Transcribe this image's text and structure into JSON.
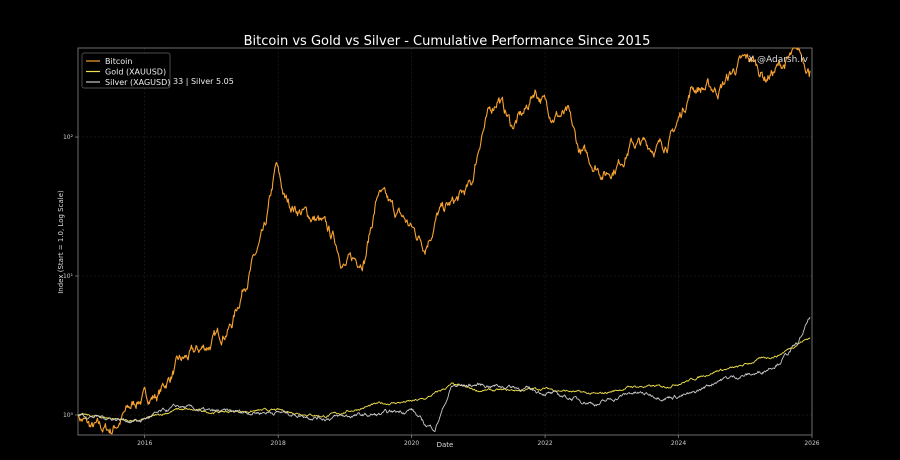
{
  "chart_data": {
    "type": "line",
    "title": "Bitcoin vs Gold vs Silver - Cumulative Performance Since 2015",
    "xlabel": "Date",
    "ylabel": "Index (Start = 1.0, Log Scale)",
    "xlim": [
      2015.0,
      2026.0
    ],
    "ylim": [
      0.72,
      600
    ],
    "yscale": "log",
    "grid": true,
    "legend_placement": "top-left",
    "x_ticks": [
      "2016",
      "2018",
      "2020",
      "2022",
      "2024",
      "2026"
    ],
    "y_ticks": [
      {
        "value": 1,
        "label": "10⁰"
      },
      {
        "value": 10,
        "label": "10¹"
      },
      {
        "value": 100,
        "label": "10²"
      }
    ],
    "annotation": "X @Adarsh.lv",
    "legend_overlap_text": "33  |  Silver 5.05",
    "series": [
      {
        "name": "Bitcoin",
        "color": "#f7a231",
        "x": [
          2015.0,
          2015.2,
          2015.5,
          2015.9,
          2016.2,
          2016.5,
          2017.0,
          2017.3,
          2017.5,
          2017.8,
          2017.97,
          2018.1,
          2018.3,
          2018.6,
          2018.85,
          2019.0,
          2019.3,
          2019.5,
          2019.7,
          2019.9,
          2020.2,
          2020.4,
          2020.7,
          2020.9,
          2021.05,
          2021.3,
          2021.5,
          2021.7,
          2021.85,
          2022.1,
          2022.35,
          2022.5,
          2022.9,
          2023.1,
          2023.3,
          2023.7,
          2023.9,
          2024.2,
          2024.6,
          2024.9,
          2025.1,
          2025.3,
          2025.6,
          2025.8,
          2025.9,
          2025.97
        ],
        "y": [
          1.0,
          0.8,
          0.78,
          1.3,
          1.4,
          2.3,
          3.3,
          4.5,
          9,
          20,
          60,
          35,
          30,
          25,
          18,
          12,
          14,
          40,
          30,
          25,
          17,
          28,
          35,
          45,
          110,
          200,
          120,
          150,
          220,
          150,
          140,
          80,
          55,
          65,
          90,
          85,
          100,
          230,
          220,
          330,
          360,
          270,
          340,
          400,
          350,
          300
        ]
      },
      {
        "name": "Gold (XAUUSD)",
        "color": "#f2e14c",
        "x": [
          2015.0,
          2015.5,
          2015.9,
          2016.5,
          2017.0,
          2018.0,
          2018.7,
          2019.0,
          2019.5,
          2020.0,
          2020.2,
          2020.6,
          2021.0,
          2021.5,
          2022.0,
          2022.8,
          2023.3,
          2023.8,
          2024.2,
          2024.6,
          2024.9,
          2025.2,
          2025.5,
          2025.8,
          2025.97
        ],
        "y": [
          1.0,
          0.95,
          0.9,
          1.1,
          1.05,
          1.08,
          0.98,
          1.05,
          1.2,
          1.25,
          1.3,
          1.65,
          1.5,
          1.5,
          1.55,
          1.4,
          1.6,
          1.6,
          1.8,
          2.1,
          2.2,
          2.5,
          2.7,
          3.3,
          3.6
        ]
      },
      {
        "name": "Silver (XAGUSD)",
        "color": "#c8c8c8",
        "x": [
          2015.0,
          2015.5,
          2015.9,
          2016.5,
          2017.0,
          2018.0,
          2018.7,
          2019.0,
          2019.5,
          2020.0,
          2020.2,
          2020.35,
          2020.6,
          2021.0,
          2021.5,
          2022.0,
          2022.8,
          2023.3,
          2023.8,
          2024.2,
          2024.6,
          2024.9,
          2025.2,
          2025.5,
          2025.8,
          2025.97
        ],
        "y": [
          1.0,
          0.95,
          0.9,
          1.15,
          1.05,
          1.05,
          0.95,
          0.98,
          1.0,
          1.1,
          0.85,
          0.8,
          1.6,
          1.65,
          1.6,
          1.45,
          1.2,
          1.45,
          1.35,
          1.4,
          1.8,
          1.9,
          2.0,
          2.4,
          3.3,
          5.05
        ]
      }
    ]
  }
}
